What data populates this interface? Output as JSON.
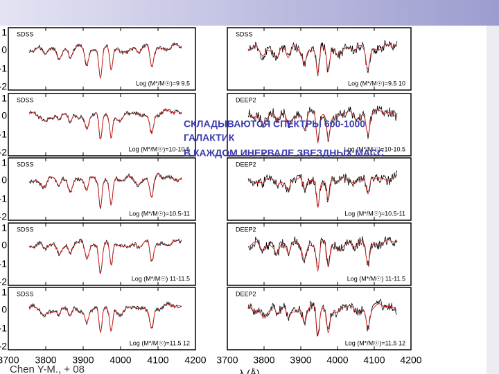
{
  "figure": {
    "panels": [
      {
        "survey": "SDSS",
        "label": "Log (M*/M☉)=9  9.5"
      },
      {
        "survey": "SDSS",
        "label": "Log (M*/M☉)=9.5  10"
      },
      {
        "survey": "SDSS",
        "label": "Log (M*/M☉)=10-10.5"
      },
      {
        "survey": "DEEP2",
        "label": "Log (M*/M☉)=10-10.5"
      },
      {
        "survey": "SDSS",
        "label": "Log (M*/M☉)=10.5-11"
      },
      {
        "survey": "DEEP2",
        "label": "Log (M*/M☉)=10.5-11"
      },
      {
        "survey": "SDSS",
        "label": "Log (M*/M☉)  11-11.5"
      },
      {
        "survey": "DEEP2",
        "label": "Log (M*/M☉)  11-11.5"
      },
      {
        "survey": "SDSS",
        "label": "Log (M*/M☉)=11.5  12"
      },
      {
        "survey": "DEEP2",
        "label": "Log (M*/M☉)=11.5  12"
      }
    ],
    "y_ticks": [
      "1",
      "0",
      "-1",
      "-2"
    ],
    "x_ticks": [
      "3700",
      "3800",
      "3900",
      "4000",
      "4100",
      "4200"
    ],
    "x_axis_label": "λ (Å)"
  },
  "overlay_text": [
    "СКЛАДЫВАЮТСЯ СПЕКТРЫ 600-1000",
    "ГАЛАКТИК",
    "В КАЖДОМ ИНЕРВАЛЕ ЗВЕЗДНЫХ МАСС"
  ],
  "citation": "Chen Y-M., + 08"
}
